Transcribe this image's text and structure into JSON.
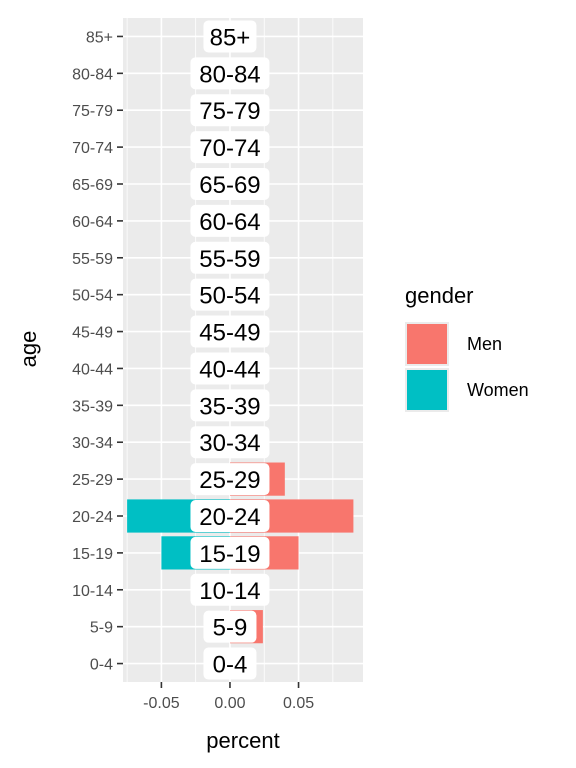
{
  "chart_data": {
    "type": "bar",
    "orientation": "horizontal",
    "categories": [
      "0-4",
      "5-9",
      "10-14",
      "15-19",
      "20-24",
      "25-29",
      "30-34",
      "35-39",
      "40-44",
      "45-49",
      "50-54",
      "55-59",
      "60-64",
      "65-69",
      "70-74",
      "75-79",
      "80-84",
      "85+"
    ],
    "series": [
      {
        "name": "Men",
        "color": "#F8766D",
        "values": [
          0.0,
          0.024,
          0.0,
          0.05,
          0.09,
          0.04,
          0.0,
          0.0,
          0.0,
          0.0,
          0.0,
          0.0,
          0.0,
          0.0,
          0.0,
          0.0,
          0.0,
          0.0
        ]
      },
      {
        "name": "Women",
        "color": "#00BFC4",
        "values": [
          0.0,
          0.0,
          0.0,
          -0.05,
          -0.075,
          0.0,
          0.0,
          0.0,
          0.0,
          0.0,
          0.0,
          0.0,
          0.0,
          0.0,
          0.0,
          0.0,
          0.0,
          0.0
        ]
      }
    ],
    "xlabel": "percent",
    "ylabel": "age",
    "xlim": [
      -0.078,
      0.097
    ],
    "xticks": [
      "-0.05",
      "0.00",
      "0.05"
    ],
    "xtick_values": [
      -0.05,
      0.0,
      0.05
    ],
    "legend_title": "gender",
    "legend_placement": "right",
    "grid": true,
    "center_labels": [
      "0-4",
      "5-9",
      "10-14",
      "15-19",
      "20-24",
      "25-29",
      "30-34",
      "35-39",
      "40-44",
      "45-49",
      "50-54",
      "55-59",
      "60-64",
      "65-69",
      "70-74",
      "75-79",
      "80-84",
      "85+"
    ]
  }
}
